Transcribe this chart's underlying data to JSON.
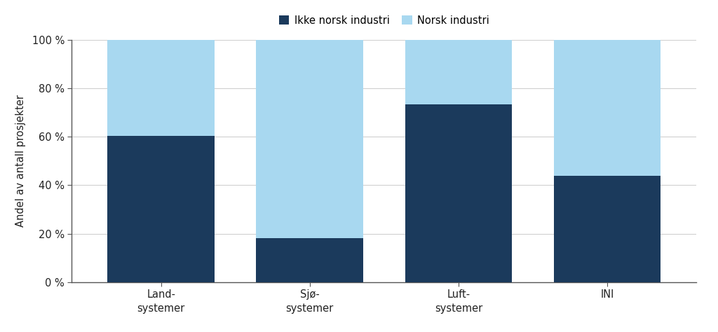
{
  "categories": [
    "Land-\nsystemer",
    "Sjø-\nsystemer",
    "Luft-\nsystemer",
    "INI"
  ],
  "ikke_norsk": [
    0.605,
    0.182,
    0.733,
    0.438
  ],
  "norsk": [
    0.395,
    0.818,
    0.267,
    0.562
  ],
  "color_ikke_norsk": "#1b3a5c",
  "color_norsk": "#a8d8f0",
  "legend_ikke_norsk": "Ikke norsk industri",
  "legend_norsk": "Norsk industri",
  "ylabel": "Andel av antall prosjekter",
  "ylim": [
    0,
    1.0
  ],
  "yticks": [
    0,
    0.2,
    0.4,
    0.6,
    0.8,
    1.0
  ],
  "ytick_labels": [
    "0 %",
    "20 %",
    "40 %",
    "60 %",
    "80 %",
    "100 %"
  ],
  "background_color": "#ffffff",
  "grid_color": "#d0d0d0",
  "bar_width": 0.72
}
